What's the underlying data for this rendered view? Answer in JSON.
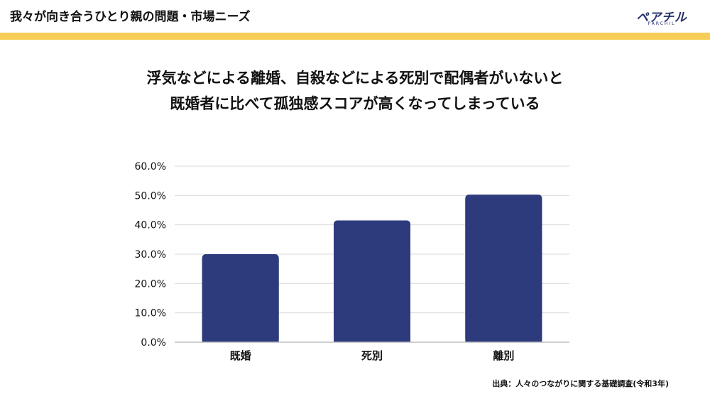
{
  "header": {
    "title": "我々が向き合うひとり親の問題・市場ニーズ",
    "logo_text": "ペアチル",
    "logo_sub": "PARCHIL"
  },
  "headline": {
    "line1": "浮気などによる離婚、自殺などによる死別で配偶者がいないと",
    "line2": "既婚者に比べて孤独感スコアが高くなってしまっている"
  },
  "colors": {
    "bar": "#2d3a7c",
    "accent": "#f6cd57",
    "grid": "#d9d9d9",
    "axis": "#bfbfbf"
  },
  "chart_data": {
    "type": "bar",
    "categories": [
      "既婚",
      "死別",
      "離別"
    ],
    "values": [
      30.0,
      41.5,
      50.3
    ],
    "ylim": [
      0,
      60
    ],
    "yticks": [
      0,
      10,
      20,
      30,
      40,
      50,
      60
    ],
    "ytick_labels": [
      "0.0%",
      "10.0%",
      "20.0%",
      "30.0%",
      "40.0%",
      "50.0%",
      "60.0%"
    ],
    "grid": true
  },
  "source": "出典：人々のつながりに関する基礎調査(令和3年)"
}
